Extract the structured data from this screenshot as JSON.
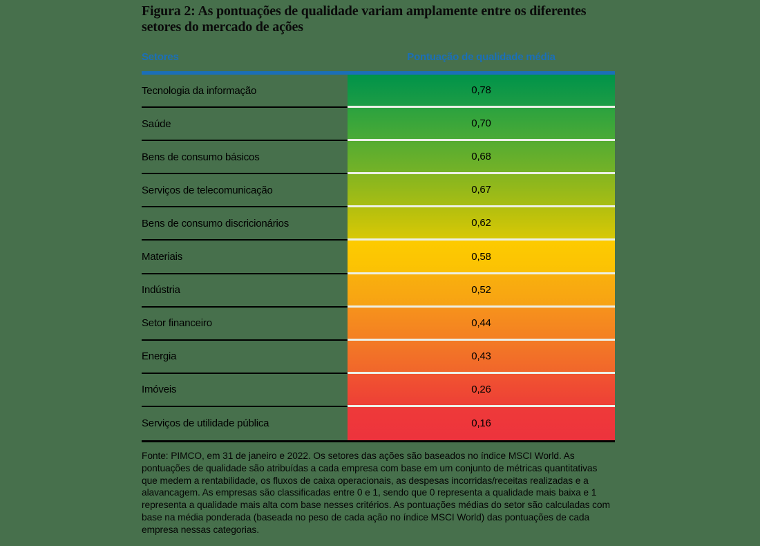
{
  "title": "Figura 2: As pontuações de qualidade variam amplamente entre os diferentes setores do mercado de ações",
  "colors": {
    "background": "#47704C",
    "accent_blue": "#1B6FB8",
    "separator_light": "#ECF0E6",
    "separator_dark": "#000000",
    "text": "#000000"
  },
  "chart_data": {
    "type": "table",
    "title": "Figura 2: As pontuações de qualidade variam amplamente entre os diferentes setores do mercado de ações",
    "columns": [
      "Setores",
      "Pontuação de qualidade média"
    ],
    "value_range": [
      0,
      1
    ],
    "legend_position": "none",
    "color_scale": "green (alta qualidade) → amarelo → vermelho (baixa qualidade)",
    "rows": [
      {
        "label": "Tecnologia da informação",
        "value": "0,78",
        "value_num": 0.78,
        "color_top": "#009349",
        "color_bottom": "#1D9C45"
      },
      {
        "label": "Saúde",
        "value": "0,70",
        "value_num": 0.7,
        "color_top": "#2BA23F",
        "color_bottom": "#4AAA36"
      },
      {
        "label": "Bens de consumo básicos",
        "value": "0,68",
        "value_num": 0.68,
        "color_top": "#55AC31",
        "color_bottom": "#75B227"
      },
      {
        "label": "Serviços de telecomunicação",
        "value": "0,67",
        "value_num": 0.67,
        "color_top": "#84B520",
        "color_bottom": "#A7BD14"
      },
      {
        "label": "Bens de consumo discricionários",
        "value": "0,62",
        "value_num": 0.62,
        "color_top": "#B3BF0F",
        "color_bottom": "#D7C805"
      },
      {
        "label": "Materiais",
        "value": "0,58",
        "value_num": 0.58,
        "color_top": "#FDCB00",
        "color_bottom": "#FBC104"
      },
      {
        "label": "Indústria",
        "value": "0,52",
        "value_num": 0.52,
        "color_top": "#F9B00D",
        "color_bottom": "#F7A214"
      },
      {
        "label": "Setor financeiro",
        "value": "0,44",
        "value_num": 0.44,
        "color_top": "#F6921C",
        "color_bottom": "#F48022"
      },
      {
        "label": "Energia",
        "value": "0,43",
        "value_num": 0.43,
        "color_top": "#F37A25",
        "color_bottom": "#F1662B"
      },
      {
        "label": "Imóveis",
        "value": "0,26",
        "value_num": 0.26,
        "color_top": "#F05430",
        "color_bottom": "#EE4036"
      },
      {
        "label": "Serviços de utilidade pública",
        "value": "0,16",
        "value_num": 0.16,
        "color_top": "#EE3A39",
        "color_bottom": "#ED333D"
      }
    ]
  },
  "footnote": "Fonte: PIMCO, em 31 de janeiro e 2022. Os setores das ações são baseados no índice MSCI World. As pontuações de qualidade são atribuídas a cada empresa com base em um conjunto de métricas quantitativas que medem a rentabilidade, os fluxos de caixa operacionais, as despesas incorridas/receitas realizadas e a alavancagem. As empresas são classificadas entre 0 e 1, sendo que 0 representa a qualidade mais baixa e 1 representa a qualidade mais alta com base nesses critérios. As pontuações médias do setor são calculadas com base na média ponderada (baseada no peso de cada ação no índice MSCI World) das pontuações de cada empresa nessas categorias."
}
